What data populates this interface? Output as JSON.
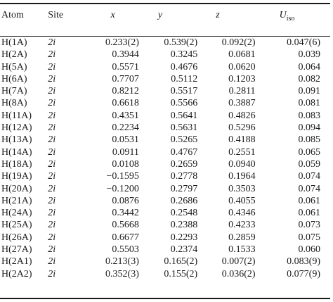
{
  "table": {
    "headers": {
      "atom": "Atom",
      "site": "Site",
      "x": "x",
      "y": "y",
      "z": "z",
      "u_main": "U",
      "u_sub": "iso"
    },
    "rows": [
      {
        "atom": "H(1A)",
        "site": "2i",
        "x": "0.233(2)",
        "y": "0.539(2)",
        "z": "0.092(2)",
        "u": "0.047(6)"
      },
      {
        "atom": "H(2A)",
        "site": "2i",
        "x": "0.3944",
        "y": "0.3245",
        "z": "0.0681",
        "u": "0.039"
      },
      {
        "atom": "H(5A)",
        "site": "2i",
        "x": "0.5571",
        "y": "0.4676",
        "z": "0.0620",
        "u": "0.064"
      },
      {
        "atom": "H(6A)",
        "site": "2i",
        "x": "0.7707",
        "y": "0.5112",
        "z": "0.1203",
        "u": "0.082"
      },
      {
        "atom": "H(7A)",
        "site": "2i",
        "x": "0.8212",
        "y": "0.5517",
        "z": "0.2811",
        "u": "0.091"
      },
      {
        "atom": "H(8A)",
        "site": "2i",
        "x": "0.6618",
        "y": "0.5566",
        "z": "0.3887",
        "u": "0.081"
      },
      {
        "atom": "H(11A)",
        "site": "2i",
        "x": "0.4351",
        "y": "0.5641",
        "z": "0.4826",
        "u": "0.083"
      },
      {
        "atom": "H(12A)",
        "site": "2i",
        "x": "0.2234",
        "y": "0.5631",
        "z": "0.5296",
        "u": "0.094"
      },
      {
        "atom": "H(13A)",
        "site": "2i",
        "x": "0.0531",
        "y": "0.5265",
        "z": "0.4188",
        "u": "0.085"
      },
      {
        "atom": "H(14A)",
        "site": "2i",
        "x": "0.0911",
        "y": "0.4767",
        "z": "0.2551",
        "u": "0.065"
      },
      {
        "atom": "H(18A)",
        "site": "2i",
        "x": "0.0108",
        "y": "0.2659",
        "z": "0.0940",
        "u": "0.059"
      },
      {
        "atom": "H(19A)",
        "site": "2i",
        "x": "−0.1595",
        "y": "0.2778",
        "z": "0.1964",
        "u": "0.074"
      },
      {
        "atom": "H(20A)",
        "site": "2i",
        "x": "−0.1200",
        "y": "0.2797",
        "z": "0.3503",
        "u": "0.074"
      },
      {
        "atom": "H(21A)",
        "site": "2i",
        "x": "0.0876",
        "y": "0.2686",
        "z": "0.4055",
        "u": "0.061"
      },
      {
        "atom": "H(24A)",
        "site": "2i",
        "x": "0.3442",
        "y": "0.2548",
        "z": "0.4346",
        "u": "0.061"
      },
      {
        "atom": "H(25A)",
        "site": "2i",
        "x": "0.5668",
        "y": "0.2388",
        "z": "0.4233",
        "u": "0.073"
      },
      {
        "atom": "H(26A)",
        "site": "2i",
        "x": "0.6677",
        "y": "0.2293",
        "z": "0.2859",
        "u": "0.075"
      },
      {
        "atom": "H(27A)",
        "site": "2i",
        "x": "0.5503",
        "y": "0.2374",
        "z": "0.1533",
        "u": "0.060"
      },
      {
        "atom": "H(2A1)",
        "site": "2i",
        "x": "0.213(3)",
        "y": "0.165(2)",
        "z": "0.007(2)",
        "u": "0.083(9)"
      },
      {
        "atom": "H(2A2)",
        "site": "2i",
        "x": "0.352(3)",
        "y": "0.155(2)",
        "z": "0.036(2)",
        "u": "0.077(9)"
      }
    ]
  }
}
